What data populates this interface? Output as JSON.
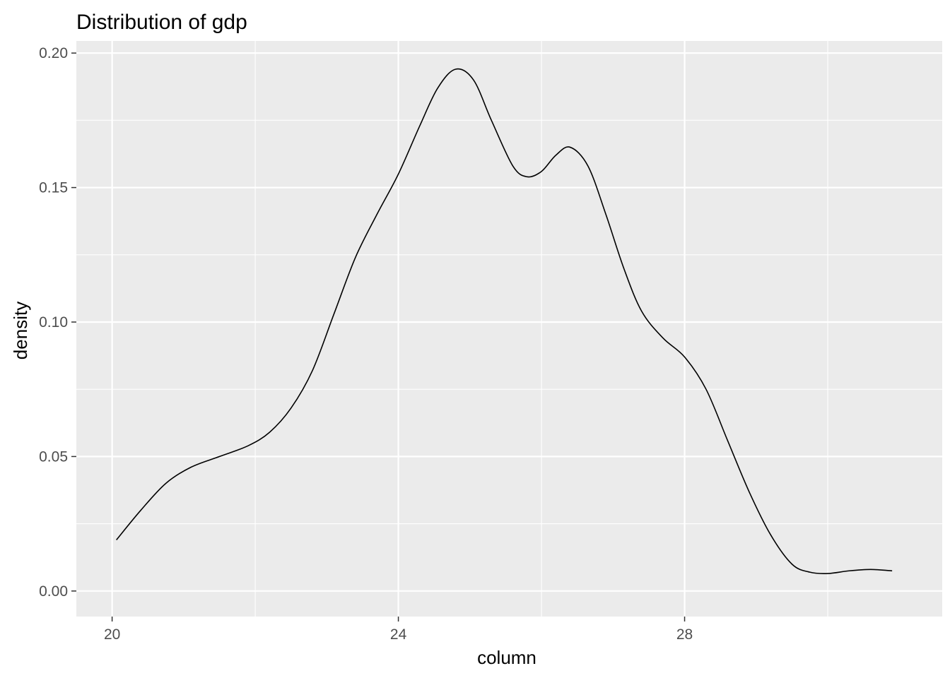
{
  "chart_data": {
    "type": "line",
    "title": "Distribution of gdp",
    "xlabel": "column",
    "ylabel": "density",
    "xlim": [
      19.5,
      31.6
    ],
    "ylim": [
      -0.0095,
      0.2045
    ],
    "x_ticks": [
      20,
      24,
      28
    ],
    "x_tick_labels": [
      "20",
      "24",
      "28"
    ],
    "x_minor_ticks": [
      22,
      26,
      30
    ],
    "y_ticks": [
      0.0,
      0.05,
      0.1,
      0.15,
      0.2
    ],
    "y_tick_labels": [
      "0.00",
      "0.05",
      "0.10",
      "0.15",
      "0.20"
    ],
    "y_minor_ticks": [
      0.025,
      0.075,
      0.125,
      0.175
    ],
    "grid": true,
    "panel_background": "#ebebeb",
    "line_color": "#000000",
    "series": [
      {
        "x": [
          20.06,
          20.4,
          20.75,
          21.1,
          21.5,
          21.9,
          22.2,
          22.5,
          22.8,
          23.1,
          23.4,
          23.7,
          24.0,
          24.3,
          24.55,
          24.8,
          25.05,
          25.3,
          25.6,
          25.8,
          26.0,
          26.2,
          26.4,
          26.65,
          26.9,
          27.15,
          27.4,
          27.7,
          28.0,
          28.3,
          28.6,
          28.9,
          29.2,
          29.5,
          29.75,
          30.0,
          30.3,
          30.6,
          30.9
        ],
        "y": [
          0.019,
          0.03,
          0.04,
          0.046,
          0.05,
          0.054,
          0.059,
          0.068,
          0.082,
          0.103,
          0.124,
          0.14,
          0.155,
          0.173,
          0.187,
          0.194,
          0.19,
          0.175,
          0.158,
          0.154,
          0.156,
          0.162,
          0.165,
          0.158,
          0.14,
          0.12,
          0.104,
          0.094,
          0.087,
          0.075,
          0.056,
          0.037,
          0.021,
          0.01,
          0.007,
          0.0065,
          0.0075,
          0.008,
          0.0075
        ]
      }
    ]
  }
}
